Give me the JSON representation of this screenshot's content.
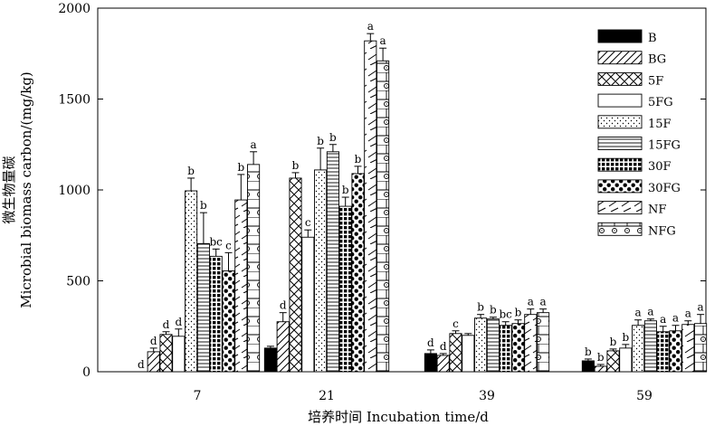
{
  "chart_data": {
    "type": "bar",
    "xlabel": "培养时间 Incubation time/d",
    "ylabel_cn": "微生物量碳",
    "ylabel_en": "Microbial biomass carbon/(mg/kg)",
    "ylim": [
      0,
      2000
    ],
    "yticks": [
      "0",
      "500",
      "1000",
      "1500",
      "2000"
    ],
    "categories": [
      "7",
      "21",
      "39",
      "59"
    ],
    "legend_position": "top-right",
    "series": [
      {
        "name": "B",
        "pattern": "solid",
        "values": [
          0,
          130,
          100,
          60
        ],
        "errors": [
          0,
          10,
          20,
          10
        ],
        "labels": [
          "d",
          "",
          "d",
          "b"
        ]
      },
      {
        "name": "BG",
        "pattern": "diag",
        "values": [
          110,
          275,
          90,
          30
        ],
        "errors": [
          20,
          50,
          10,
          10
        ],
        "labels": [
          "d",
          "d",
          "d",
          "b"
        ]
      },
      {
        "name": "5F",
        "pattern": "cross",
        "values": [
          205,
          1065,
          210,
          115
        ],
        "errors": [
          15,
          30,
          15,
          10
        ],
        "labels": [
          "d",
          "b",
          "c",
          "b"
        ]
      },
      {
        "name": "5FG",
        "pattern": "blank",
        "values": [
          195,
          740,
          200,
          130
        ],
        "errors": [
          40,
          40,
          10,
          20
        ],
        "labels": [
          "d",
          "c",
          "",
          "b"
        ]
      },
      {
        "name": "15F",
        "pattern": "dots",
        "values": [
          995,
          1110,
          295,
          255
        ],
        "errors": [
          70,
          120,
          20,
          30
        ],
        "labels": [
          "b",
          "b",
          "b",
          "a"
        ]
      },
      {
        "name": "15FG",
        "pattern": "hlines",
        "values": [
          705,
          1210,
          290,
          280
        ],
        "errors": [
          170,
          40,
          10,
          10
        ],
        "labels": [
          "b",
          "b",
          "b",
          "a"
        ]
      },
      {
        "name": "30F",
        "pattern": "grid",
        "values": [
          635,
          910,
          255,
          220
        ],
        "errors": [
          40,
          50,
          20,
          30
        ],
        "labels": [
          "bc",
          "b",
          "bc",
          "a"
        ]
      },
      {
        "name": "30FG",
        "pattern": "bigdots",
        "values": [
          555,
          1090,
          265,
          225
        ],
        "errors": [
          100,
          40,
          20,
          30
        ],
        "labels": [
          "c",
          "b",
          "b",
          "a"
        ]
      },
      {
        "name": "NF",
        "pattern": "zigzag",
        "values": [
          945,
          1820,
          315,
          260
        ],
        "errors": [
          140,
          40,
          30,
          20
        ],
        "labels": [
          "b",
          "a",
          "a",
          "a"
        ]
      },
      {
        "name": "NFG",
        "pattern": "brick",
        "values": [
          1140,
          1710,
          325,
          265
        ],
        "errors": [
          70,
          70,
          20,
          50
        ],
        "labels": [
          "a",
          "a",
          "a",
          "a"
        ]
      }
    ]
  }
}
